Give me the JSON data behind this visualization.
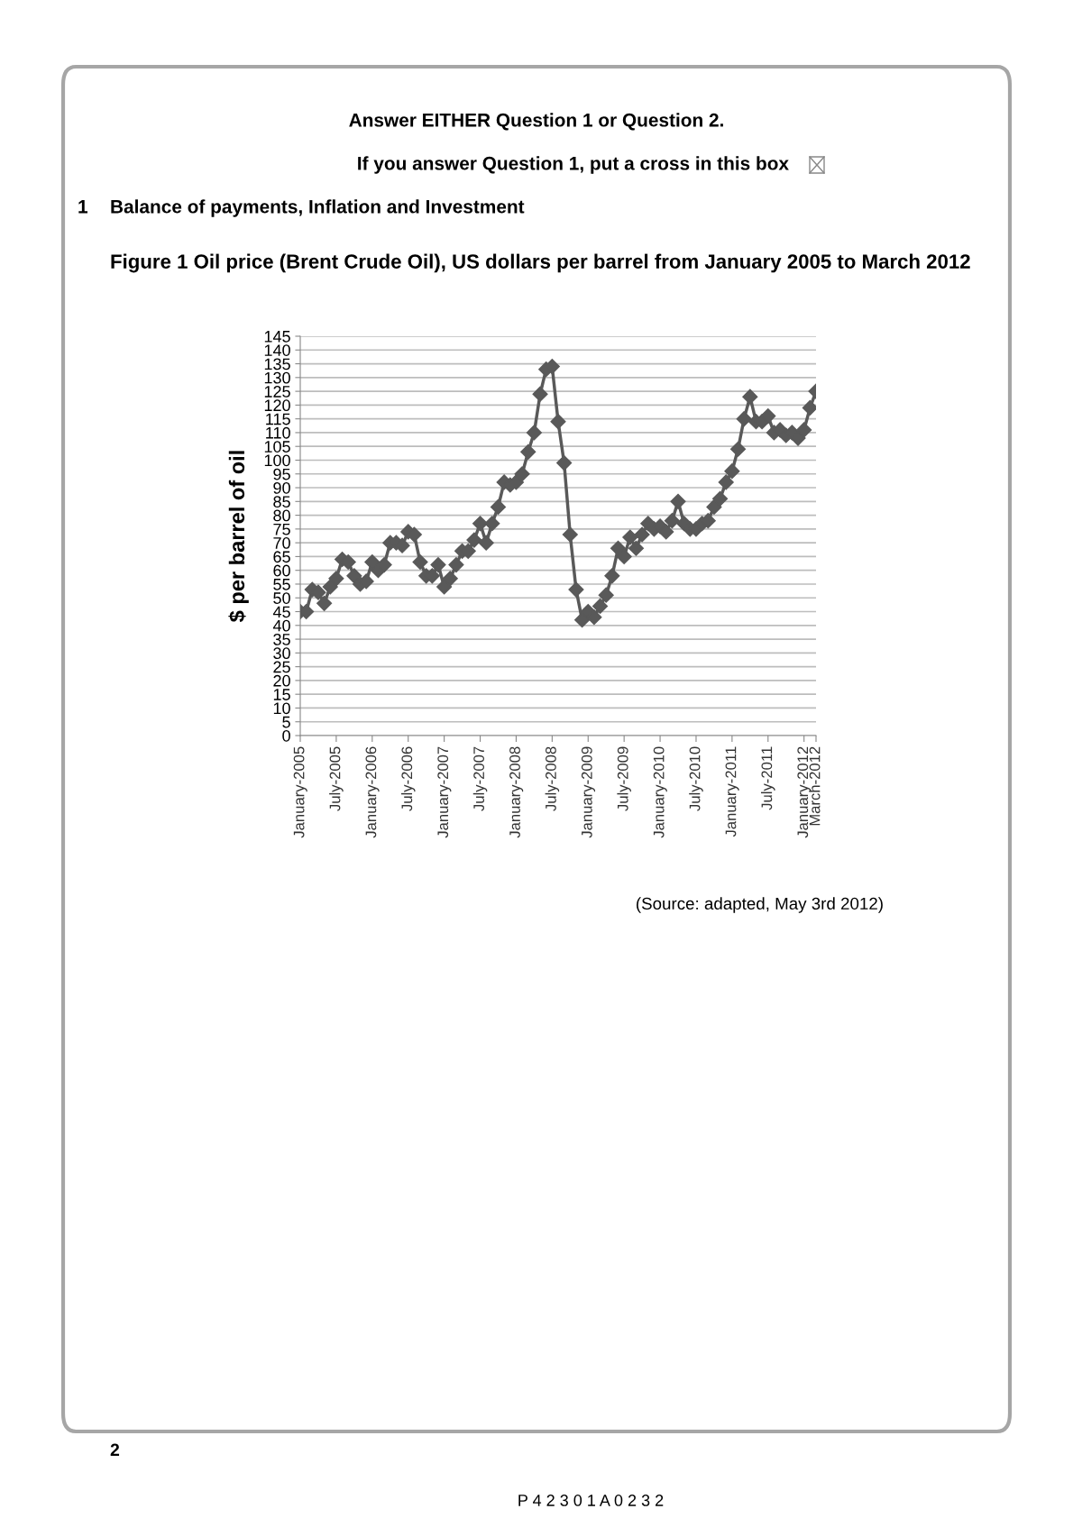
{
  "chart_data": {
    "type": "line",
    "title": "Figure 1 Oil price (Brent Crude Oil), US dollars per barrel from January 2005 to March 2012",
    "ylabel": "$ per barrel of oil",
    "categories": [
      "January-2005",
      null,
      null,
      null,
      null,
      null,
      "July-2005",
      null,
      null,
      null,
      null,
      null,
      "January-2006",
      null,
      null,
      null,
      null,
      null,
      "July-2006",
      null,
      null,
      null,
      null,
      null,
      "January-2007",
      null,
      null,
      null,
      null,
      null,
      "July-2007",
      null,
      null,
      null,
      null,
      null,
      "January-2008",
      null,
      null,
      null,
      null,
      null,
      "July-2008",
      null,
      null,
      null,
      null,
      null,
      "January-2009",
      null,
      null,
      null,
      null,
      null,
      "July-2009",
      null,
      null,
      null,
      null,
      null,
      "January-2010",
      null,
      null,
      null,
      null,
      null,
      "July-2010",
      null,
      null,
      null,
      null,
      null,
      "January-2011",
      null,
      null,
      null,
      null,
      null,
      "July-2011",
      null,
      null,
      null,
      null,
      null,
      "January-2012",
      null,
      "March-2012"
    ],
    "series": [
      {
        "color": "#595959",
        "values": [
          45,
          45,
          53,
          52,
          48,
          54,
          57,
          64,
          63,
          58,
          55,
          56,
          63,
          60,
          62,
          70,
          70,
          69,
          74,
          73,
          63,
          58,
          58,
          62,
          54,
          57,
          62,
          67,
          67,
          71,
          77,
          70,
          77,
          83,
          92,
          91,
          92,
          95,
          103,
          110,
          124,
          133,
          134,
          114,
          99,
          73,
          53,
          42,
          45,
          43,
          47,
          51,
          58,
          68,
          65,
          72,
          68,
          73,
          77,
          75,
          76,
          74,
          78,
          85,
          77,
          75,
          75,
          77,
          78,
          83,
          86,
          92,
          96,
          104,
          115,
          123,
          114,
          114,
          116,
          110,
          111,
          109,
          110,
          108,
          111,
          119,
          125
        ]
      }
    ],
    "ylim": [
      0,
      145
    ],
    "yticks": [
      0,
      5,
      10,
      15,
      20,
      25,
      30,
      35,
      40,
      45,
      50,
      55,
      60,
      65,
      70,
      75,
      80,
      85,
      90,
      95,
      100,
      105,
      110,
      115,
      120,
      125,
      130,
      135,
      140,
      145
    ],
    "grid": "y",
    "marker": "diamond",
    "line_style": "solid",
    "annotations": [
      "Answer EITHER Question 1 or Question 2.",
      "If you answer Question 1, put a cross in this box",
      "1",
      "Balance of payments, Inflation and Investment",
      "(Source: adapted, May 3rd 2012)",
      "2",
      "P 4 2 3 0 1 A 0 2 3 2"
    ]
  }
}
